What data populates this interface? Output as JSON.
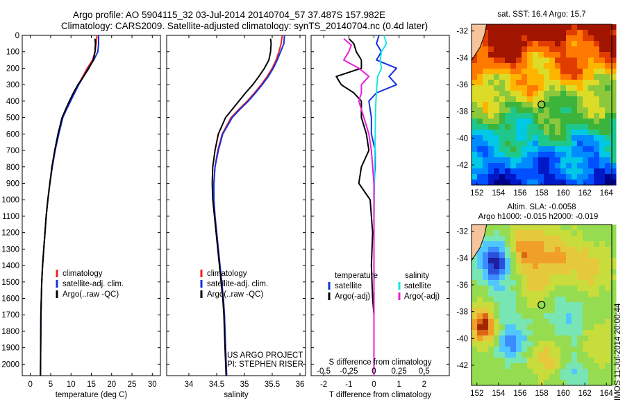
{
  "header": {
    "title_line1": "Argo profile: AO 5904115_32 03-Jul-2014 20140704_57 37.487S 157.982E",
    "title_line2": "Climatology: CARS2009. Satellite-adjusted climatology: synTS_20140704.nc (0.4d later)"
  },
  "colors": {
    "climatology": "#e8231f",
    "satellite": "#1431e0",
    "argo": "#000000",
    "salinity_satellite": "#17e5e5",
    "salinity_argo": "#e81ed8",
    "land": "#f5c49c"
  },
  "credit": {
    "line1": "US ARGO PROJECT",
    "line2": "PI: STEPHEN RISER"
  },
  "watermark": "IMOS 11-Jul-2014 20:00:44",
  "chart_data": [
    {
      "type": "line",
      "id": "temperature_profile",
      "xlabel": "temperature (deg C)",
      "ylabel": "",
      "xlim": [
        -2,
        32
      ],
      "ylim": [
        2070,
        0
      ],
      "xticks": [
        0,
        5,
        10,
        15,
        20,
        25,
        30
      ],
      "yticks": [
        0,
        100,
        200,
        300,
        400,
        500,
        600,
        700,
        800,
        900,
        1000,
        1100,
        1200,
        1300,
        1400,
        1500,
        1600,
        1700,
        1800,
        1900,
        2000
      ],
      "legend": [
        "climatology",
        "satellite-adj. clim.",
        "Argo(..raw -QC)"
      ],
      "legend_position": "lower-right",
      "series": [
        {
          "name": "climatology",
          "color": "#e8231f",
          "x": [
            16.4,
            16.2,
            15.9,
            15.3,
            14.0,
            12.9,
            11.8,
            10.8,
            9.8,
            8.8,
            7.9,
            6.9,
            6.1,
            5.4,
            4.8,
            4.3,
            3.9,
            3.6,
            3.3,
            3.0,
            2.8,
            2.6,
            2.5
          ],
          "y": [
            0,
            50,
            100,
            150,
            200,
            250,
            300,
            350,
            400,
            450,
            500,
            600,
            700,
            800,
            900,
            1000,
            1100,
            1200,
            1300,
            1400,
            1500,
            1700,
            2070
          ]
        },
        {
          "name": "satellite-adj. clim.",
          "color": "#1431e0",
          "x": [
            16.8,
            16.8,
            16.6,
            15.6,
            14.3,
            13.1,
            11.9,
            10.9,
            9.9,
            8.9,
            8.0,
            7.0,
            6.1,
            5.4,
            4.8,
            4.3,
            3.9,
            3.6,
            3.3,
            3.0,
            2.8,
            2.6,
            2.5
          ],
          "y": [
            0,
            50,
            100,
            150,
            200,
            250,
            300,
            350,
            400,
            450,
            500,
            600,
            700,
            800,
            900,
            1000,
            1100,
            1200,
            1300,
            1400,
            1500,
            1700,
            2070
          ]
        },
        {
          "name": "Argo(..raw -QC)",
          "color": "#000000",
          "x": [
            15.9,
            16.0,
            15.9,
            15.5,
            14.4,
            13.1,
            11.7,
            10.6,
            9.6,
            8.7,
            7.8,
            6.8,
            6.0,
            5.3,
            4.8,
            4.3,
            3.9,
            3.6,
            3.3,
            3.0,
            2.8,
            2.6,
            2.5
          ],
          "y": [
            20,
            50,
            100,
            150,
            200,
            250,
            300,
            350,
            400,
            450,
            500,
            600,
            700,
            800,
            900,
            1000,
            1100,
            1200,
            1300,
            1400,
            1500,
            1700,
            2070
          ]
        }
      ]
    },
    {
      "type": "line",
      "id": "salinity_profile",
      "xlabel": "salinity",
      "ylabel": "",
      "xlim": [
        33.6,
        36.1
      ],
      "ylim": [
        2070,
        0
      ],
      "xticks": [
        34,
        34.5,
        35,
        35.5,
        36
      ],
      "legend": [
        "climatology",
        "satellite-adj. clim.",
        "Argo(..raw -QC)"
      ],
      "legend_position": "lower-right",
      "series": [
        {
          "name": "climatology",
          "color": "#e8231f",
          "x": [
            35.68,
            35.66,
            35.62,
            35.57,
            35.5,
            35.41,
            35.3,
            35.18,
            35.05,
            34.9,
            34.76,
            34.6,
            34.52,
            34.47,
            34.45,
            34.45,
            34.47,
            34.5,
            34.53,
            34.56,
            34.59,
            34.62,
            34.64,
            34.66,
            34.68
          ],
          "y": [
            0,
            50,
            100,
            150,
            200,
            250,
            300,
            350,
            400,
            450,
            500,
            600,
            700,
            800,
            900,
            1000,
            1100,
            1200,
            1300,
            1400,
            1500,
            1600,
            1700,
            1900,
            2070
          ]
        },
        {
          "name": "satellite-adj. clim.",
          "color": "#1431e0",
          "x": [
            35.72,
            35.71,
            35.65,
            35.59,
            35.52,
            35.43,
            35.32,
            35.2,
            35.07,
            34.92,
            34.78,
            34.61,
            34.53,
            34.47,
            34.45,
            34.45,
            34.47,
            34.5,
            34.53,
            34.56,
            34.59,
            34.62,
            34.64,
            34.66,
            34.68
          ],
          "y": [
            0,
            50,
            100,
            150,
            200,
            250,
            300,
            350,
            400,
            450,
            500,
            600,
            700,
            800,
            900,
            1000,
            1100,
            1200,
            1300,
            1400,
            1500,
            1600,
            1700,
            1900,
            2070
          ]
        },
        {
          "name": "Argo(..raw -QC)",
          "color": "#000000",
          "x": [
            35.47,
            35.48,
            35.47,
            35.44,
            35.36,
            35.26,
            35.15,
            35.02,
            34.9,
            34.78,
            34.66,
            34.53,
            34.47,
            34.43,
            34.42,
            34.43,
            34.46,
            34.49,
            34.52,
            34.55,
            34.58,
            34.61,
            34.63,
            34.65,
            34.67
          ],
          "y": [
            20,
            50,
            100,
            150,
            200,
            250,
            300,
            350,
            400,
            450,
            500,
            600,
            700,
            800,
            900,
            1000,
            1100,
            1200,
            1300,
            1400,
            1500,
            1600,
            1700,
            1900,
            2070
          ]
        }
      ]
    },
    {
      "type": "line",
      "id": "difference_profile",
      "xlabel": "T difference from climatology",
      "xlabel_top": "S difference from climatology",
      "xlim": [
        -2.5,
        3
      ],
      "ylim": [
        2070,
        0
      ],
      "xticks": [
        -2,
        -1,
        0,
        1,
        2
      ],
      "xticks_top_values": [
        -0.5,
        -0.25,
        0,
        0.25,
        0.5
      ],
      "xticks_top": [
        "-0.5",
        "-0.25",
        "0",
        "0.25",
        "0.5"
      ],
      "legend_temperature_title": "temperature",
      "legend_salinity_title": "salinity",
      "legend_temperature": [
        "satellite",
        "Argo(-adj)"
      ],
      "legend_salinity": [
        "satellite",
        "Argo(-adj)"
      ],
      "series": [
        {
          "name": "temperature satellite",
          "color": "#1431e0",
          "x": [
            0.2,
            0.1,
            0.3,
            0.1,
            0.9,
            0.6,
            0.9,
            0.1,
            -0.2,
            -0.1,
            -0.1,
            0.05,
            0.05,
            0.0,
            0.0,
            0.0,
            0.0,
            0.0,
            0.0,
            0.0,
            0.0,
            0.0
          ],
          "y": [
            0,
            50,
            100,
            150,
            200,
            250,
            300,
            350,
            400,
            500,
            600,
            700,
            800,
            900,
            1000,
            1200,
            1400,
            1600,
            1700,
            1800,
            1900,
            2070
          ]
        },
        {
          "name": "temperature Argo(-adj)",
          "color": "#000000",
          "x": [
            -1.0,
            -0.8,
            -0.7,
            -0.5,
            -0.5,
            -1.5,
            -1.3,
            -0.8,
            -0.5,
            -0.5,
            -0.3,
            -0.2,
            -0.5,
            -0.6,
            -0.15,
            -0.05,
            -0.1,
            -0.05,
            0.0,
            0.0,
            0.0,
            0.0
          ],
          "y": [
            20,
            50,
            100,
            150,
            200,
            250,
            300,
            350,
            400,
            500,
            600,
            700,
            800,
            900,
            1000,
            1200,
            1400,
            1600,
            1700,
            1800,
            1900,
            2070
          ]
        },
        {
          "name": "salinity satellite",
          "color": "#17e5e5",
          "x": [
            0.4,
            0.5,
            0.3,
            0.25,
            0.3,
            0.15,
            0.12,
            0.1,
            0.08,
            0.06,
            0.05,
            0.04,
            0.03,
            0.02,
            0.01,
            0.0,
            0.0,
            0.0,
            0.0,
            0.0
          ],
          "y": [
            0,
            50,
            100,
            150,
            200,
            250,
            300,
            350,
            400,
            500,
            600,
            700,
            800,
            900,
            1000,
            1200,
            1400,
            1600,
            1800,
            2070
          ]
        },
        {
          "name": "salinity Argo(-adj)",
          "color": "#e81ed8",
          "x": [
            -1.2,
            -0.9,
            -1.0,
            -1.2,
            -0.6,
            -0.2,
            -0.5,
            -0.5,
            -0.6,
            -0.4,
            -0.2,
            -0.1,
            -0.05,
            0.0,
            0.0,
            0.0,
            0.0,
            0.0,
            0.0
          ],
          "y": [
            20,
            60,
            100,
            150,
            200,
            250,
            300,
            350,
            400,
            500,
            600,
            700,
            800,
            900,
            1000,
            1200,
            1400,
            1600,
            2070
          ]
        }
      ]
    },
    {
      "type": "heatmap",
      "id": "sst_map",
      "title": "sat. SST: 16.4  Argo: 15.7",
      "xlim": [
        151.5,
        164.5
      ],
      "ylim": [
        -43.5,
        -31.5
      ],
      "xticks": [
        152,
        154,
        156,
        158,
        160,
        162,
        164
      ],
      "yticks": [
        -32,
        -34,
        -36,
        -38,
        -40,
        -42
      ],
      "float_position": {
        "lon": 157.982,
        "lat": -37.487
      },
      "sst": {
        "sat": 16.4,
        "argo": 15.7
      }
    },
    {
      "type": "heatmap",
      "id": "sla_map",
      "title_line1": "Altim. SLA: -0.0058",
      "title_line2": "Argo h1000: -0.015 h2000: -0.019",
      "xlim": [
        151.5,
        164.5
      ],
      "ylim": [
        -43.5,
        -31.5
      ],
      "xticks": [
        152,
        154,
        156,
        158,
        160,
        162,
        164
      ],
      "yticks": [
        -32,
        -34,
        -36,
        -38,
        -40,
        -42
      ],
      "float_position": {
        "lon": 157.982,
        "lat": -37.487
      },
      "sla": {
        "altim": -0.0058,
        "argo_h1000": -0.015,
        "argo_h2000": -0.019
      }
    }
  ]
}
